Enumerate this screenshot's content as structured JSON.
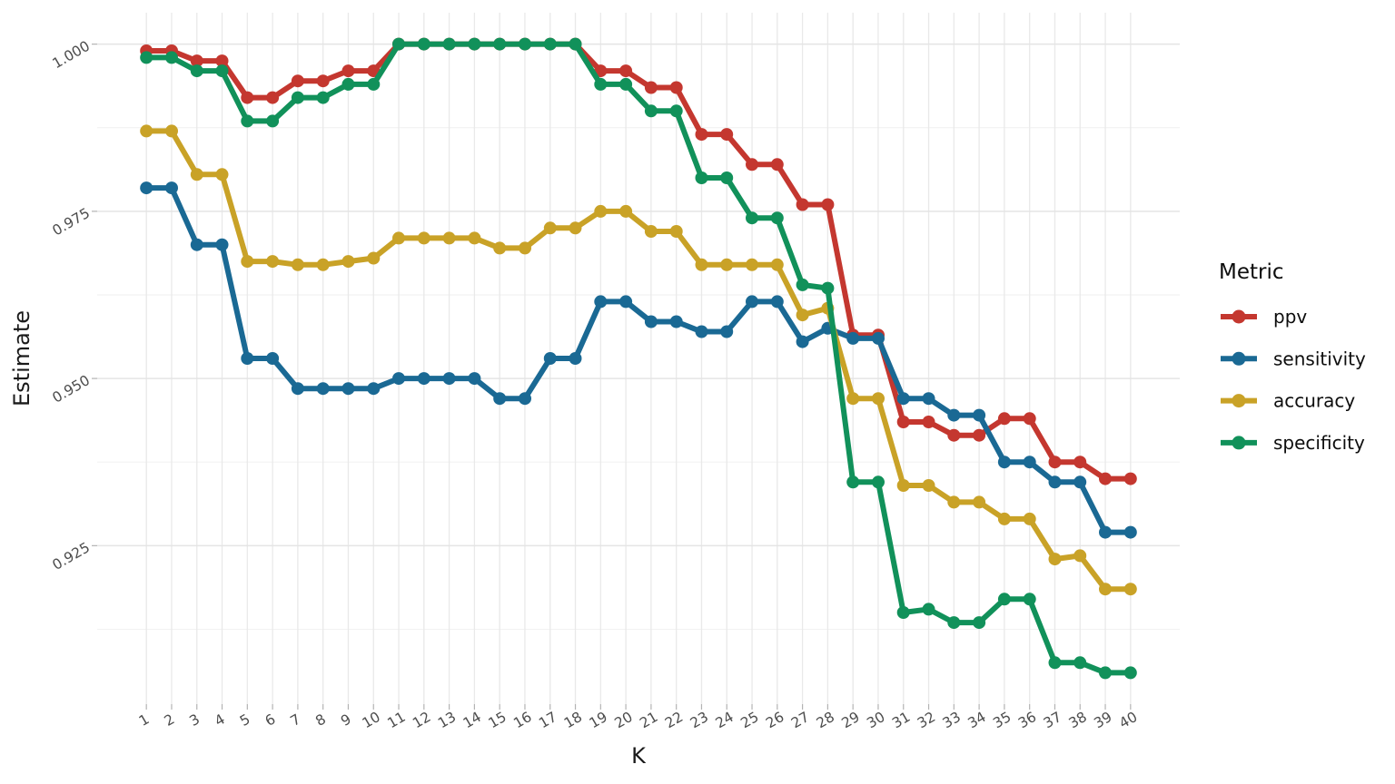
{
  "page": {
    "background": "#FFFFFF"
  },
  "chart_data": {
    "type": "line",
    "title": "",
    "xlabel": "K",
    "ylabel": "Estimate",
    "legend_title": "Metric",
    "legend_position": "right",
    "grid": true,
    "x": [
      1,
      2,
      3,
      4,
      5,
      6,
      7,
      8,
      9,
      10,
      11,
      12,
      13,
      14,
      15,
      16,
      17,
      18,
      19,
      20,
      21,
      22,
      23,
      24,
      25,
      26,
      27,
      28,
      29,
      30,
      31,
      32,
      33,
      34,
      35,
      36,
      37,
      38,
      39,
      40
    ],
    "xlim": [
      -0.95,
      41.95
    ],
    "ylim": [
      0.9013,
      1.0047
    ],
    "y_ticks": [
      0.925,
      0.95,
      0.975,
      1.0
    ],
    "y_tick_labels": [
      "0.925",
      "0.950",
      "0.975",
      "1.000"
    ],
    "y_minor_ticks": [
      0.9125,
      0.9375,
      0.9625,
      0.9875
    ],
    "axis_text_color": "#4D4D4D",
    "axis_title_color": "#1A1A1A",
    "grid_major_color": "#E4E4E4",
    "grid_minor_color": "#EFEFEF",
    "grid_x_color": "#E9E9E9",
    "tick_mark_color": "#B3B3B3",
    "series": [
      {
        "name": "ppv",
        "color": "#C4372F",
        "values": [
          0.999,
          0.999,
          0.9975,
          0.9975,
          0.992,
          0.992,
          0.9945,
          0.9945,
          0.996,
          0.996,
          1.0,
          1.0,
          1.0,
          1.0,
          1.0,
          1.0,
          1.0,
          1.0,
          0.996,
          0.996,
          0.9935,
          0.9935,
          0.9865,
          0.9865,
          0.982,
          0.982,
          0.976,
          0.976,
          0.9565,
          0.9565,
          0.9435,
          0.9435,
          0.9415,
          0.9415,
          0.944,
          0.944,
          0.9375,
          0.9375,
          0.935,
          0.935
        ]
      },
      {
        "name": "sensitivity",
        "color": "#1A6994",
        "values": [
          0.9785,
          0.9785,
          0.97,
          0.97,
          0.953,
          0.953,
          0.9485,
          0.9485,
          0.9485,
          0.9485,
          0.95,
          0.95,
          0.95,
          0.95,
          0.947,
          0.947,
          0.953,
          0.953,
          0.9615,
          0.9615,
          0.9585,
          0.9585,
          0.957,
          0.957,
          0.9615,
          0.9615,
          0.9555,
          0.9575,
          0.956,
          0.956,
          0.947,
          0.947,
          0.9445,
          0.9445,
          0.9375,
          0.9375,
          0.9345,
          0.9345,
          0.927,
          0.927
        ]
      },
      {
        "name": "accuracy",
        "color": "#C9A227",
        "values": [
          0.987,
          0.987,
          0.9805,
          0.9805,
          0.9675,
          0.9675,
          0.967,
          0.967,
          0.9675,
          0.968,
          0.971,
          0.971,
          0.971,
          0.971,
          0.9695,
          0.9695,
          0.9725,
          0.9725,
          0.975,
          0.975,
          0.972,
          0.972,
          0.967,
          0.967,
          0.967,
          0.967,
          0.9595,
          0.9605,
          0.947,
          0.947,
          0.934,
          0.934,
          0.9315,
          0.9315,
          0.929,
          0.929,
          0.923,
          0.9235,
          0.9185,
          0.9185
        ]
      },
      {
        "name": "specificity",
        "color": "#11915A",
        "values": [
          0.998,
          0.998,
          0.996,
          0.996,
          0.9885,
          0.9885,
          0.992,
          0.992,
          0.994,
          0.994,
          1.0,
          1.0,
          1.0,
          1.0,
          1.0,
          1.0,
          1.0,
          1.0,
          0.994,
          0.994,
          0.99,
          0.99,
          0.98,
          0.98,
          0.974,
          0.974,
          0.964,
          0.9635,
          0.9345,
          0.9345,
          0.915,
          0.9155,
          0.9135,
          0.9135,
          0.917,
          0.917,
          0.9075,
          0.9075,
          0.906,
          0.906
        ]
      }
    ]
  }
}
